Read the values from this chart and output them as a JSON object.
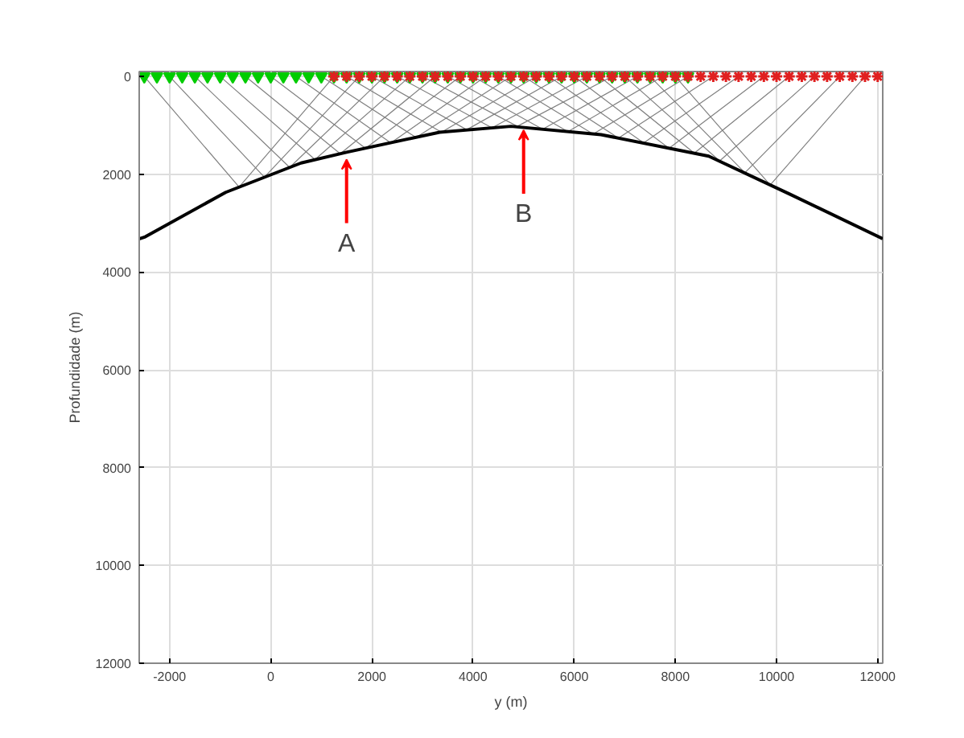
{
  "chart_data": {
    "type": "line",
    "xlabel": "y (m)",
    "ylabel": "Profundidade (m)",
    "xlim": [
      -2600,
      12100
    ],
    "ylim": [
      12000,
      -100
    ],
    "xticks": [
      -2000,
      0,
      2000,
      4000,
      6000,
      8000,
      10000,
      12000
    ],
    "yticks": [
      0,
      2000,
      4000,
      6000,
      8000,
      10000,
      12000
    ],
    "grid": true,
    "line_style": "solid",
    "annotations": [
      {
        "text": "A",
        "x": 1500,
        "y": 1700
      },
      {
        "text": "B",
        "x": 5000,
        "y": 1100
      }
    ],
    "series": [
      {
        "color": "#808080",
        "x": [
          -2500,
          -625,
          1250
        ],
        "values": [
          0,
          2260,
          0
        ]
      },
      {
        "color": "#808080",
        "x": [
          -2000,
          -125,
          1750
        ],
        "values": [
          0,
          2060,
          0
        ]
      },
      {
        "color": "#808080",
        "x": [
          -1500,
          375,
          2250
        ],
        "values": [
          0,
          1860,
          0
        ]
      },
      {
        "color": "#808080",
        "x": [
          -1000,
          875,
          2750
        ],
        "values": [
          0,
          1700,
          0
        ]
      },
      {
        "color": "#808080",
        "x": [
          -500,
          1375,
          3250
        ],
        "values": [
          0,
          1580,
          0
        ]
      },
      {
        "color": "#808080",
        "x": [
          0,
          1875,
          3750
        ],
        "values": [
          0,
          1470,
          0
        ]
      },
      {
        "color": "#808080",
        "x": [
          500,
          2375,
          4250
        ],
        "values": [
          0,
          1360,
          0
        ]
      },
      {
        "color": "#808080",
        "x": [
          1000,
          2875,
          4750
        ],
        "values": [
          0,
          1250,
          0
        ]
      },
      {
        "color": "#808080",
        "x": [
          1500,
          3375,
          5250
        ],
        "values": [
          0,
          1140,
          0
        ]
      },
      {
        "color": "#808080",
        "x": [
          2000,
          3875,
          5750
        ],
        "values": [
          0,
          1090,
          0
        ]
      },
      {
        "color": "#808080",
        "x": [
          2500,
          4375,
          6250
        ],
        "values": [
          0,
          1050,
          0
        ]
      },
      {
        "color": "#808080",
        "x": [
          3000,
          4875,
          6750
        ],
        "values": [
          0,
          1020,
          0
        ]
      },
      {
        "color": "#808080",
        "x": [
          3500,
          5375,
          7250
        ],
        "values": [
          0,
          1080,
          0
        ]
      },
      {
        "color": "#808080",
        "x": [
          4000,
          5875,
          7750
        ],
        "values": [
          0,
          1130,
          0
        ]
      },
      {
        "color": "#808080",
        "x": [
          4500,
          6375,
          8250
        ],
        "values": [
          0,
          1180,
          0
        ]
      },
      {
        "color": "#808080",
        "x": [
          5000,
          6875,
          8750
        ],
        "values": [
          0,
          1260,
          0
        ]
      },
      {
        "color": "#808080",
        "x": [
          5500,
          7375,
          9250
        ],
        "values": [
          0,
          1360,
          0
        ]
      },
      {
        "color": "#808080",
        "x": [
          6000,
          7875,
          9750
        ],
        "values": [
          0,
          1470,
          0
        ]
      },
      {
        "color": "#808080",
        "x": [
          6500,
          8375,
          10250
        ],
        "values": [
          0,
          1570,
          0
        ]
      },
      {
        "color": "#808080",
        "x": [
          7000,
          8875,
          10750
        ],
        "values": [
          0,
          1730,
          0
        ]
      },
      {
        "color": "#808080",
        "x": [
          7500,
          9375,
          11250
        ],
        "values": [
          0,
          1970,
          0
        ]
      },
      {
        "color": "#808080",
        "x": [
          8000,
          9875,
          11750
        ],
        "values": [
          0,
          2220,
          0
        ]
      },
      {
        "color": "#000000",
        "x": [
          -2600,
          -2480,
          -890,
          600,
          1500,
          3340,
          4750,
          6530,
          8660,
          10250,
          12100
        ],
        "values": [
          3320,
          3280,
          2370,
          1770,
          1550,
          1140,
          1020,
          1190,
          1630,
          2400,
          3320
        ]
      },
      {
        "type": "scatter",
        "marker": "triangle",
        "color": "#00cc00",
        "x": [
          -2500,
          -2250,
          -2000,
          -1750,
          -1500,
          -1250,
          -1000,
          -750,
          -500,
          -250,
          0,
          250,
          500,
          750,
          1000,
          1250,
          1500,
          1750,
          2000,
          2250,
          2500,
          2750,
          3000,
          3250,
          3500,
          3750,
          4000,
          4250,
          4500,
          4750,
          5000,
          5250,
          5500,
          5750,
          6000,
          6250,
          6500,
          6750,
          7000,
          7250,
          7500,
          7750,
          8000,
          8250
        ],
        "values": [
          0,
          0,
          0,
          0,
          0,
          0,
          0,
          0,
          0,
          0,
          0,
          0,
          0,
          0,
          0,
          0,
          0,
          0,
          0,
          0,
          0,
          0,
          0,
          0,
          0,
          0,
          0,
          0,
          0,
          0,
          0,
          0,
          0,
          0,
          0,
          0,
          0,
          0,
          0,
          0,
          0,
          0,
          0,
          0
        ]
      },
      {
        "type": "scatter",
        "marker": "cross",
        "color": "#e02020",
        "x": [
          1250,
          1500,
          1750,
          2000,
          2250,
          2500,
          2750,
          3000,
          3250,
          3500,
          3750,
          4000,
          4250,
          4500,
          4750,
          5000,
          5250,
          5500,
          5750,
          6000,
          6250,
          6500,
          6750,
          7000,
          7250,
          7500,
          7750,
          8000,
          8250,
          8500,
          8750,
          9000,
          9250,
          9500,
          9750,
          10000,
          10250,
          10500,
          10750,
          11000,
          11250,
          11500,
          11750,
          12000
        ],
        "values": [
          0,
          0,
          0,
          0,
          0,
          0,
          0,
          0,
          0,
          0,
          0,
          0,
          0,
          0,
          0,
          0,
          0,
          0,
          0,
          0,
          0,
          0,
          0,
          0,
          0,
          0,
          0,
          0,
          0,
          0,
          0,
          0,
          0,
          0,
          0,
          0,
          0,
          0,
          0,
          0,
          0,
          0,
          0,
          0
        ]
      }
    ]
  }
}
